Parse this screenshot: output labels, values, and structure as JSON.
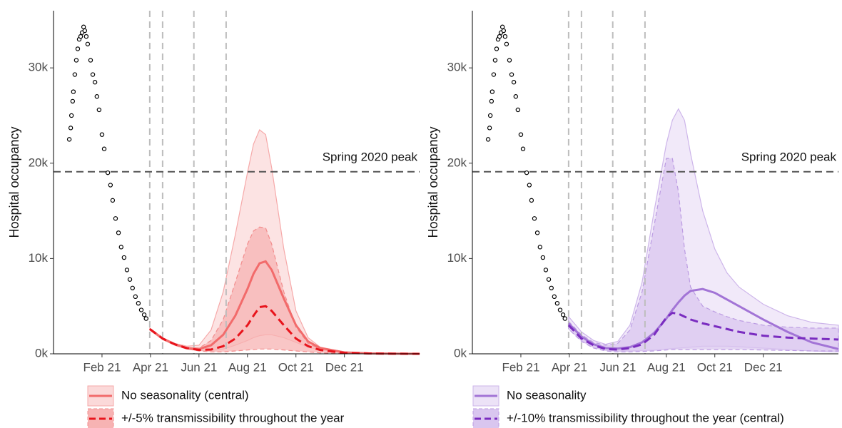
{
  "chart_data": [
    {
      "type": "line",
      "y_label": "Hospital occupancy",
      "xlim": [
        0,
        15.1
      ],
      "xticks": [
        {
          "value": 2,
          "label": "Feb 21"
        },
        {
          "value": 4,
          "label": "Apr 21"
        },
        {
          "value": 6,
          "label": "Jun 21"
        },
        {
          "value": 8,
          "label": "Aug 21"
        },
        {
          "value": 10,
          "label": "Oct 21"
        },
        {
          "value": 12,
          "label": "Dec 21"
        }
      ],
      "ylim": [
        0,
        36000
      ],
      "yticks": [
        {
          "value": 0,
          "label": "0k"
        },
        {
          "value": 10000,
          "label": "10k"
        },
        {
          "value": 20000,
          "label": "20k"
        },
        {
          "value": 30000,
          "label": "30k"
        }
      ],
      "hline": {
        "value": 19100,
        "label": "Spring 2020 peak"
      },
      "vlines": [
        3.97,
        4.5,
        5.79,
        7.12
      ],
      "observed": {
        "x": [
          0.65,
          0.71,
          0.74,
          0.79,
          0.82,
          0.88,
          0.94,
          1.0,
          1.06,
          1.12,
          1.18,
          1.24,
          1.29,
          1.35,
          1.41,
          1.53,
          1.62,
          1.71,
          1.79,
          1.88,
          2.0,
          2.09,
          2.24,
          2.35,
          2.44,
          2.56,
          2.68,
          2.79,
          2.91,
          3.03,
          3.15,
          3.26,
          3.38,
          3.5,
          3.62,
          3.74,
          3.82
        ],
        "values": [
          22500,
          23700,
          25000,
          26500,
          27500,
          29300,
          30800,
          32000,
          33000,
          33300,
          33700,
          34300,
          33900,
          33300,
          32500,
          30800,
          29300,
          28500,
          27000,
          25600,
          23000,
          21500,
          19000,
          17700,
          16100,
          14200,
          12700,
          11200,
          10100,
          8800,
          7800,
          6900,
          6000,
          5300,
          4600,
          4100,
          3700
        ]
      },
      "x": [
        3.97,
        4.5,
        5,
        5.5,
        6,
        6.5,
        7,
        7.5,
        8,
        8.25,
        8.5,
        8.75,
        9,
        9.5,
        10,
        10.5,
        11,
        12,
        13,
        14,
        15.1
      ],
      "series": [
        {
          "name": "No seasonality (central)",
          "color": "#f26b6b",
          "band_color": "#fbd9d9",
          "band_edge": "#f6a9a9",
          "dashed": false,
          "values": [
            2600,
            1600,
            1000,
            600,
            500,
            900,
            2000,
            4000,
            6800,
            8400,
            9500,
            9700,
            8800,
            5800,
            3000,
            1300,
            600,
            150,
            50,
            20,
            0
          ],
          "upper": [
            2700,
            1700,
            1100,
            800,
            900,
            2500,
            6500,
            12500,
            19000,
            22000,
            23500,
            23000,
            19500,
            11000,
            4500,
            1700,
            700,
            200,
            80,
            30,
            10
          ],
          "lower": [
            2500,
            1500,
            900,
            500,
            350,
            350,
            500,
            900,
            1400,
            1700,
            1900,
            2000,
            2000,
            1700,
            1200,
            700,
            400,
            100,
            40,
            10,
            0
          ]
        },
        {
          "name": "+/-5% transmissibility throughout the year",
          "color": "#e8141c",
          "band_color": "#f7b3b3",
          "band_edge": "#f28c8c",
          "dashed": true,
          "values": [
            2600,
            1600,
            1000,
            600,
            400,
            450,
            800,
            1600,
            3000,
            4000,
            4900,
            5000,
            4500,
            3000,
            1600,
            800,
            400,
            100,
            40,
            10,
            0
          ],
          "upper": [
            2600,
            1600,
            1000,
            650,
            600,
            1400,
            3600,
            7500,
            11500,
            12900,
            13300,
            13200,
            11500,
            6500,
            2800,
            1100,
            500,
            150,
            50,
            20,
            0
          ],
          "lower": [
            2500,
            1500,
            900,
            500,
            300,
            200,
            200,
            300,
            400,
            450,
            500,
            500,
            500,
            400,
            300,
            200,
            100,
            50,
            20,
            10,
            0
          ]
        }
      ]
    },
    {
      "type": "line",
      "y_label": "Hospital occupancy",
      "xlim": [
        0,
        15.1
      ],
      "xticks": [
        {
          "value": 2,
          "label": "Feb 21"
        },
        {
          "value": 4,
          "label": "Apr 21"
        },
        {
          "value": 6,
          "label": "Jun 21"
        },
        {
          "value": 8,
          "label": "Aug 21"
        },
        {
          "value": 10,
          "label": "Oct 21"
        },
        {
          "value": 12,
          "label": "Dec 21"
        }
      ],
      "ylim": [
        0,
        36000
      ],
      "yticks": [
        {
          "value": 0,
          "label": "0k"
        },
        {
          "value": 10000,
          "label": "10k"
        },
        {
          "value": 20000,
          "label": "20k"
        },
        {
          "value": 30000,
          "label": "30k"
        }
      ],
      "hline": {
        "value": 19100,
        "label": "Spring 2020 peak"
      },
      "vlines": [
        3.97,
        4.5,
        5.79,
        7.12
      ],
      "observed": {
        "x": [
          0.65,
          0.71,
          0.74,
          0.79,
          0.82,
          0.88,
          0.94,
          1.0,
          1.06,
          1.12,
          1.18,
          1.24,
          1.29,
          1.35,
          1.41,
          1.53,
          1.62,
          1.71,
          1.79,
          1.88,
          2.0,
          2.09,
          2.24,
          2.35,
          2.44,
          2.56,
          2.68,
          2.79,
          2.91,
          3.03,
          3.15,
          3.26,
          3.38,
          3.5,
          3.62,
          3.74,
          3.82
        ],
        "values": [
          22500,
          23700,
          25000,
          26500,
          27500,
          29300,
          30800,
          32000,
          33000,
          33300,
          33700,
          34300,
          33900,
          33300,
          32500,
          30800,
          29300,
          28500,
          27000,
          25600,
          23000,
          21500,
          19000,
          17700,
          16100,
          14200,
          12700,
          11200,
          10100,
          8800,
          7800,
          6900,
          6000,
          5300,
          4600,
          4100,
          3700
        ]
      },
      "x": [
        3.97,
        4.5,
        5,
        5.5,
        6,
        6.5,
        7,
        7.5,
        8,
        8.25,
        8.5,
        8.75,
        9,
        9.5,
        10,
        10.5,
        11,
        12,
        13,
        14,
        15.1
      ],
      "series": [
        {
          "name": "No seasonality",
          "color": "#a274d6",
          "band_color": "#ece2f7",
          "band_edge": "#cdb5ea",
          "dashed": false,
          "values": [
            3200,
            1800,
            1000,
            600,
            550,
            700,
            1200,
            2200,
            3700,
            4600,
            5400,
            6100,
            6600,
            6800,
            6400,
            5700,
            5000,
            3600,
            2300,
            1200,
            500
          ],
          "upper": [
            3900,
            2300,
            1400,
            1000,
            1300,
            3000,
            7500,
            15000,
            22000,
            24500,
            25700,
            24500,
            21000,
            15000,
            11000,
            8500,
            7000,
            5200,
            4000,
            3300,
            3000
          ],
          "lower": [
            2600,
            1400,
            700,
            400,
            300,
            300,
            350,
            400,
            500,
            550,
            600,
            650,
            700,
            800,
            800,
            800,
            750,
            600,
            450,
            300,
            200
          ]
        },
        {
          "name": "+/-10% transmissibility throughout the year (central)",
          "color": "#7a2cc0",
          "band_color": "#d9c6ef",
          "band_edge": "#bb9be2",
          "dashed": true,
          "values": [
            3000,
            1600,
            900,
            500,
            450,
            600,
            1000,
            2000,
            3800,
            4300,
            4200,
            3900,
            3600,
            3200,
            2900,
            2600,
            2300,
            1900,
            1700,
            1600,
            1500
          ],
          "upper": [
            3400,
            2000,
            1200,
            900,
            1100,
            2500,
            6500,
            13500,
            20500,
            20500,
            17000,
            11000,
            7000,
            5000,
            4400,
            3900,
            3500,
            3000,
            2800,
            2700,
            2700
          ],
          "lower": [
            2600,
            1300,
            600,
            300,
            200,
            200,
            250,
            300,
            400,
            450,
            450,
            450,
            450,
            450,
            450,
            450,
            450,
            400,
            350,
            300,
            300
          ]
        }
      ]
    }
  ]
}
